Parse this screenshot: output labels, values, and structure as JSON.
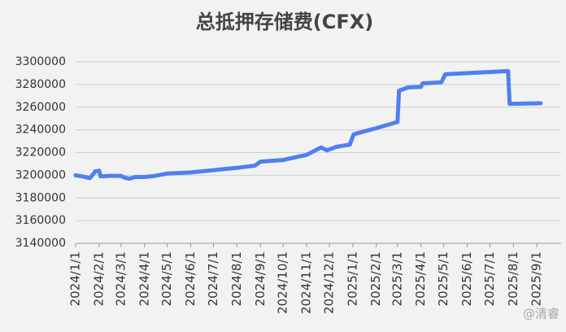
{
  "chart_data": {
    "type": "line",
    "title": "总抵押存储费(CFX)",
    "watermark": "@清睿",
    "x": [
      "2024/1/1",
      "2024/1/10",
      "2024/1/20",
      "2024/1/27",
      "2024/2/1",
      "2024/2/3",
      "2024/2/15",
      "2024/3/1",
      "2024/3/5",
      "2024/3/12",
      "2024/3/20",
      "2024/4/1",
      "2024/4/15",
      "2024/5/1",
      "2024/6/1",
      "2024/7/1",
      "2024/8/1",
      "2024/8/25",
      "2024/9/1",
      "2024/10/1",
      "2024/11/1",
      "2024/11/20",
      "2024/11/28",
      "2024/12/10",
      "2024/12/28",
      "2025/1/2",
      "2025/1/15",
      "2025/2/1",
      "2025/3/1",
      "2025/3/3",
      "2025/3/15",
      "2025/4/1",
      "2025/4/3",
      "2025/4/28",
      "2025/5/3",
      "2025/6/1",
      "2025/7/1",
      "2025/7/25",
      "2025/7/27",
      "2025/9/6"
    ],
    "series": [
      {
        "name": "总抵押存储费",
        "color": "#4f7ff0",
        "values": [
          3200000,
          3199000,
          3197500,
          3203500,
          3204000,
          3199000,
          3199500,
          3199500,
          3198000,
          3197000,
          3198500,
          3198500,
          3199500,
          3201500,
          3202500,
          3204500,
          3206500,
          3208500,
          3212000,
          3213500,
          3218000,
          3224500,
          3222000,
          3225000,
          3227000,
          3236000,
          3238500,
          3241500,
          3247000,
          3274500,
          3277500,
          3278000,
          3281000,
          3282000,
          3289000,
          3290000,
          3291000,
          3292000,
          3263000,
          3263500
        ]
      }
    ],
    "xlim": [
      "2024/1/1",
      "2025/10/3"
    ],
    "xticks": [
      "2024/1/1",
      "2024/2/1",
      "2024/3/1",
      "2024/4/1",
      "2024/5/1",
      "2024/6/1",
      "2024/7/1",
      "2024/8/1",
      "2024/9/1",
      "2024/10/1",
      "2024/11/1",
      "2024/12/1",
      "2025/1/1",
      "2025/2/1",
      "2025/3/1",
      "2025/4/1",
      "2025/5/1",
      "2025/6/1",
      "2025/7/1",
      "2025/8/1",
      "2025/9/1"
    ],
    "ylim": [
      3140000,
      3300000
    ],
    "yticks": [
      3140000,
      3160000,
      3180000,
      3200000,
      3220000,
      3240000,
      3260000,
      3280000,
      3300000
    ],
    "grid": true
  }
}
